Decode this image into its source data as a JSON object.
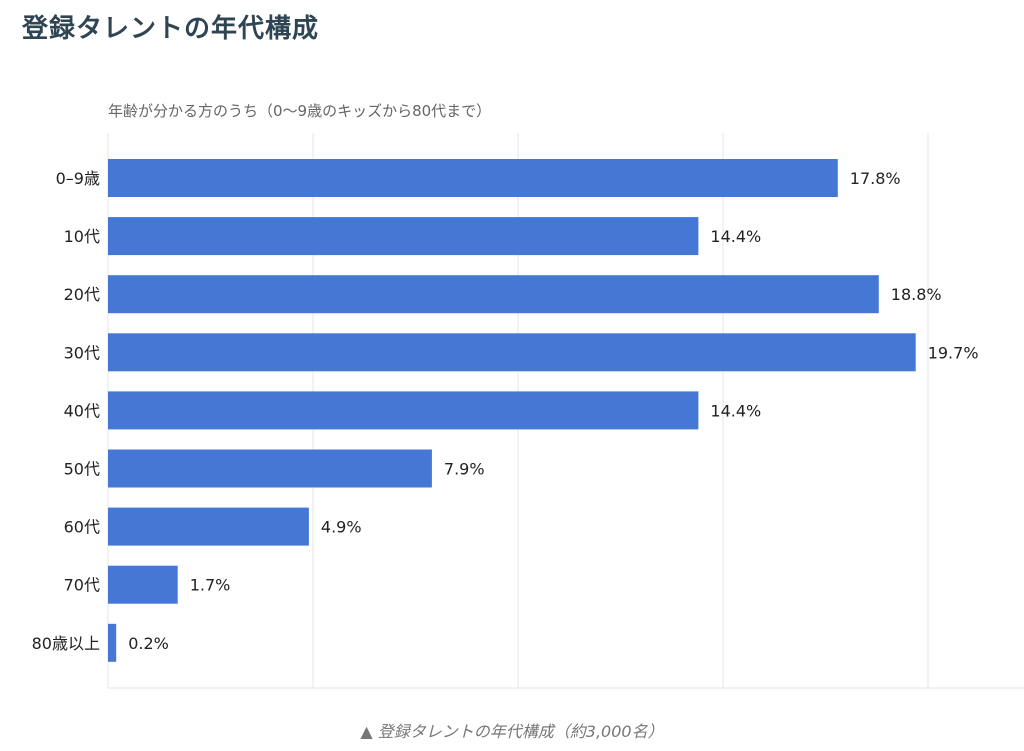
{
  "page": {
    "title": "登録タレントの年代構成",
    "caption": "▲ 登録タレントの年代構成（約3,000名）"
  },
  "colors": {
    "bar": "#4577d4",
    "title": "#2f4554",
    "grid": "#e6e6e6"
  },
  "chart_data": {
    "type": "bar",
    "orientation": "horizontal",
    "subtitle": "年齢が分かる方のうち（0〜9歳のキッズから80代まで）",
    "categories": [
      "0–9歳",
      "10代",
      "20代",
      "30代",
      "40代",
      "50代",
      "60代",
      "70代",
      "80歳以上"
    ],
    "values": [
      17.8,
      14.4,
      18.8,
      19.7,
      14.4,
      7.9,
      4.9,
      1.7,
      0.2
    ],
    "value_labels": [
      "17.8%",
      "14.4%",
      "18.8%",
      "19.7%",
      "14.4%",
      "7.9%",
      "4.9%",
      "1.7%",
      "0.2%"
    ],
    "xlim": [
      0,
      20
    ],
    "grid": true
  }
}
